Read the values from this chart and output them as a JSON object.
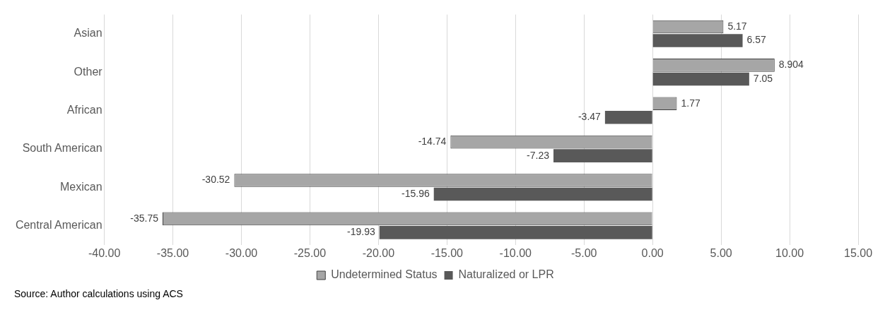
{
  "chart_data": {
    "type": "bar",
    "orientation": "horizontal",
    "categories": [
      "Asian",
      "Other",
      "African",
      "South American",
      "Mexican",
      "Central American"
    ],
    "series": [
      {
        "name": "Undetermined Status",
        "color": "#a6a6a6",
        "values": [
          5.17,
          8.904,
          1.77,
          -14.74,
          -30.52,
          -35.75
        ]
      },
      {
        "name": "Naturalized or LPR",
        "color": "#595959",
        "values": [
          6.57,
          7.05,
          -3.47,
          -7.23,
          -15.96,
          -19.93
        ]
      }
    ],
    "xlim": [
      -40,
      15
    ],
    "xticks": [
      {
        "value": -40,
        "label": "-40.00"
      },
      {
        "value": -35,
        "label": "-35.00"
      },
      {
        "value": -30,
        "label": "-30.00"
      },
      {
        "value": -25,
        "label": "-25.00"
      },
      {
        "value": -20,
        "label": "-20.00"
      },
      {
        "value": -15,
        "label": "-15.00"
      },
      {
        "value": -10,
        "label": "-10.00"
      },
      {
        "value": -5,
        "label": "-5.00"
      },
      {
        "value": 0,
        "label": "0.00"
      },
      {
        "value": 5,
        "label": "5.00"
      },
      {
        "value": 10,
        "label": "10.00"
      },
      {
        "value": 15,
        "label": "15.00"
      }
    ],
    "grid": "x",
    "legend": "bottom",
    "data_labels": true,
    "annotations": [
      "Source: Author calculations using ACS"
    ]
  }
}
